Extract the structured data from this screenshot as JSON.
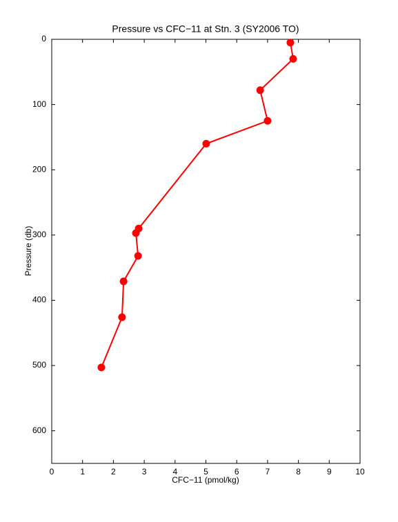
{
  "chart_data": {
    "type": "line",
    "title": "Pressure vs CFC−11 at Stn. 3 (SY2006 TO)",
    "x_label": "CFC−11 (pmol/kg)",
    "y_label": "Pressure (db)",
    "x": [
      7.74,
      7.83,
      6.76,
      7.0,
      5.01,
      2.82,
      2.73,
      2.8,
      2.33,
      2.28,
      1.61
    ],
    "values": [
      5,
      30,
      78,
      125,
      160,
      290,
      297,
      332,
      371,
      426,
      503
    ],
    "color": "#ff0000",
    "xlim": [
      0,
      10
    ],
    "xticks": [
      0,
      1,
      2,
      3,
      4,
      5,
      6,
      7,
      8,
      9,
      10
    ],
    "ylim": [
      0,
      650
    ],
    "yticks": [
      0,
      100,
      200,
      300,
      400,
      500,
      600
    ],
    "y_reversed": true,
    "grid": false
  }
}
